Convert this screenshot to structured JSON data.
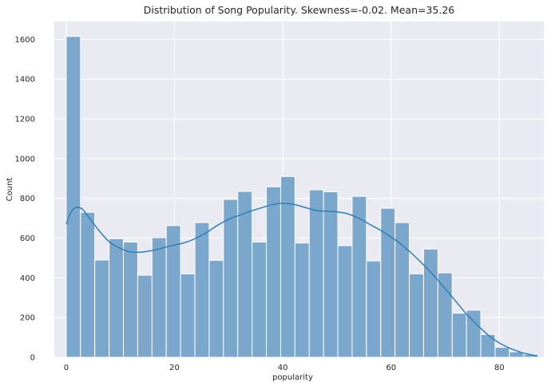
{
  "chart_data": {
    "type": "bar",
    "subtype": "histogram-with-kde",
    "title": "Distribution of Song Popularity. Skewness=-0.02. Mean=35.26",
    "xlabel": "popularity",
    "ylabel": "Count",
    "xlim": [
      -2.2,
      88.2
    ],
    "ylim": [
      0,
      1690
    ],
    "xticks": [
      0,
      20,
      40,
      60,
      80
    ],
    "yticks": [
      0,
      200,
      400,
      600,
      800,
      1000,
      1200,
      1400,
      1600
    ],
    "grid": true,
    "bin_width": 2.64,
    "bins": [
      {
        "x0": 0.0,
        "count": 1615
      },
      {
        "x0": 2.64,
        "count": 730
      },
      {
        "x0": 5.28,
        "count": 490
      },
      {
        "x0": 7.92,
        "count": 597
      },
      {
        "x0": 10.56,
        "count": 580
      },
      {
        "x0": 13.2,
        "count": 413
      },
      {
        "x0": 15.84,
        "count": 602
      },
      {
        "x0": 18.48,
        "count": 663
      },
      {
        "x0": 21.12,
        "count": 420
      },
      {
        "x0": 23.76,
        "count": 678
      },
      {
        "x0": 26.4,
        "count": 488
      },
      {
        "x0": 29.04,
        "count": 795
      },
      {
        "x0": 31.68,
        "count": 835
      },
      {
        "x0": 34.32,
        "count": 580
      },
      {
        "x0": 36.96,
        "count": 858
      },
      {
        "x0": 39.6,
        "count": 910
      },
      {
        "x0": 42.24,
        "count": 575
      },
      {
        "x0": 44.88,
        "count": 843
      },
      {
        "x0": 47.52,
        "count": 833
      },
      {
        "x0": 50.16,
        "count": 562
      },
      {
        "x0": 52.8,
        "count": 810
      },
      {
        "x0": 55.44,
        "count": 485
      },
      {
        "x0": 58.08,
        "count": 750
      },
      {
        "x0": 60.72,
        "count": 678
      },
      {
        "x0": 63.36,
        "count": 420
      },
      {
        "x0": 66.0,
        "count": 545
      },
      {
        "x0": 68.64,
        "count": 425
      },
      {
        "x0": 71.28,
        "count": 222
      },
      {
        "x0": 73.92,
        "count": 237
      },
      {
        "x0": 76.56,
        "count": 115
      },
      {
        "x0": 79.2,
        "count": 50
      },
      {
        "x0": 81.84,
        "count": 28
      },
      {
        "x0": 84.48,
        "count": 15
      }
    ],
    "kde": {
      "x": [
        0,
        1,
        2,
        3,
        4,
        6,
        8,
        10,
        12,
        14,
        16,
        18,
        20,
        22,
        24,
        26,
        28,
        30,
        32,
        34,
        36,
        38,
        40,
        42,
        44,
        46,
        48,
        50,
        52,
        54,
        56,
        58,
        60,
        62,
        64,
        66,
        68,
        70,
        72,
        74,
        76,
        78,
        80,
        82,
        84,
        86,
        87
      ],
      "y": [
        670,
        735,
        755,
        745,
        710,
        640,
        580,
        548,
        530,
        530,
        538,
        552,
        565,
        578,
        600,
        630,
        665,
        695,
        715,
        735,
        752,
        768,
        775,
        770,
        755,
        740,
        735,
        732,
        722,
        700,
        670,
        640,
        605,
        565,
        518,
        465,
        408,
        345,
        280,
        215,
        160,
        110,
        72,
        45,
        25,
        12,
        8
      ]
    },
    "colors": {
      "bar": "#7ba7cc",
      "kde": "#2f7eb6",
      "background": "#eaeaf2",
      "grid": "#ffffff"
    }
  }
}
